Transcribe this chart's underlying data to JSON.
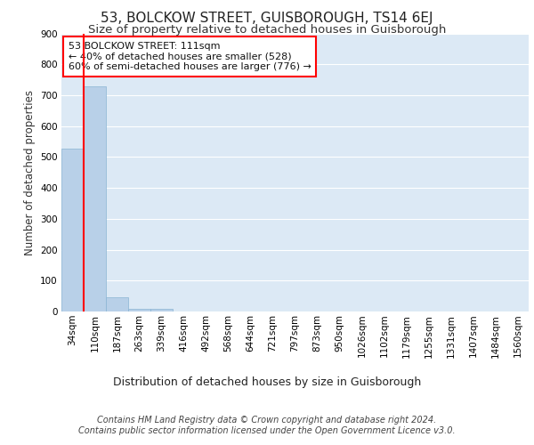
{
  "title": "53, BOLCKOW STREET, GUISBOROUGH, TS14 6EJ",
  "subtitle": "Size of property relative to detached houses in Guisborough",
  "xlabel": "Distribution of detached houses by size in Guisborough",
  "ylabel": "Number of detached properties",
  "footer_line1": "Contains HM Land Registry data © Crown copyright and database right 2024.",
  "footer_line2": "Contains public sector information licensed under the Open Government Licence v3.0.",
  "bar_labels": [
    "34sqm",
    "110sqm",
    "187sqm",
    "263sqm",
    "339sqm",
    "416sqm",
    "492sqm",
    "568sqm",
    "644sqm",
    "721sqm",
    "797sqm",
    "873sqm",
    "950sqm",
    "1026sqm",
    "1102sqm",
    "1179sqm",
    "1255sqm",
    "1331sqm",
    "1407sqm",
    "1484sqm",
    "1560sqm"
  ],
  "bar_values": [
    528,
    728,
    47,
    10,
    8,
    0,
    0,
    0,
    0,
    0,
    0,
    0,
    0,
    0,
    0,
    0,
    0,
    0,
    0,
    0,
    0
  ],
  "bar_color": "#b8d0e8",
  "bar_edge_color": "#8ab4d4",
  "property_label": "53 BOLCKOW STREET: 111sqm",
  "annotation_line1": "← 40% of detached houses are smaller (528)",
  "annotation_line2": "60% of semi-detached houses are larger (776) →",
  "red_line_x": 0.5,
  "ylim": [
    0,
    900
  ],
  "yticks": [
    0,
    100,
    200,
    300,
    400,
    500,
    600,
    700,
    800,
    900
  ],
  "background_color": "#dce9f5",
  "grid_color": "#ffffff",
  "title_fontsize": 11,
  "subtitle_fontsize": 9.5,
  "ylabel_fontsize": 8.5,
  "xlabel_fontsize": 9,
  "tick_fontsize": 7.5,
  "annotation_fontsize": 8,
  "footer_fontsize": 7
}
